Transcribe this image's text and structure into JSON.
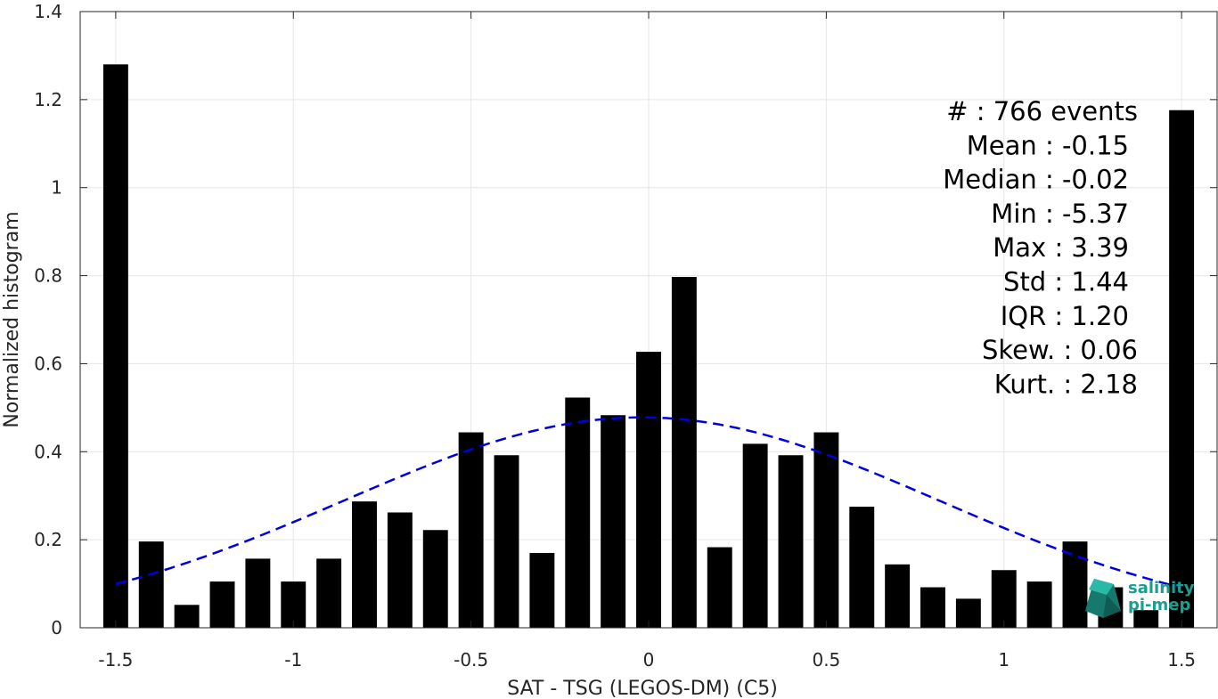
{
  "chart_data": {
    "type": "bar",
    "xlabel": "SAT - TSG (LEGOS-DM) (C5)",
    "ylabel": "Normalized histogram",
    "xlim": [
      -1.6,
      1.6
    ],
    "ylim": [
      0,
      1.4
    ],
    "grid": true,
    "bar_width": 0.07,
    "x_ticks": [
      -1.5,
      -1,
      -0.5,
      0,
      0.5,
      1,
      1.5
    ],
    "x_tick_labels": [
      "-1.5",
      "-1",
      "-0.5",
      "0",
      "0.5",
      "1",
      "1.5"
    ],
    "y_ticks": [
      0,
      0.2,
      0.4,
      0.6,
      0.8,
      1,
      1.2,
      1.4
    ],
    "y_tick_labels": [
      "0",
      "0.2",
      "0.4",
      "0.6",
      "0.8",
      "1",
      "1.2",
      "1.4"
    ],
    "x": [
      -1.5,
      -1.4,
      -1.3,
      -1.2,
      -1.1,
      -1.0,
      -0.9,
      -0.8,
      -0.7,
      -0.6,
      -0.5,
      -0.4,
      -0.3,
      -0.2,
      -0.1,
      0.0,
      0.1,
      0.2,
      0.3,
      0.4,
      0.5,
      0.6,
      0.7,
      0.8,
      0.9,
      1.0,
      1.1,
      1.2,
      1.3,
      1.4,
      1.5
    ],
    "values": [
      1.28,
      0.196,
      0.052,
      0.105,
      0.157,
      0.105,
      0.157,
      0.287,
      0.262,
      0.222,
      0.444,
      0.392,
      0.17,
      0.523,
      0.483,
      0.627,
      0.797,
      0.183,
      0.418,
      0.392,
      0.444,
      0.275,
      0.144,
      0.092,
      0.066,
      0.131,
      0.105,
      0.196,
      0.092,
      0.04,
      1.176
    ],
    "bar_color": "#000000",
    "fit_curve": {
      "style": "dashed",
      "color": "#0000dd",
      "mean": -0.02,
      "std": 0.835,
      "peak": 0.478,
      "x_range": [
        -1.5,
        1.5
      ]
    },
    "grid_color": "#e6e6e6"
  },
  "stats": {
    "lines": [
      "#  : 766 events",
      "Mean : -0.15",
      "Median : -0.02",
      "Min : -5.37",
      "Max : 3.39",
      "Std : 1.44",
      "IQR : 1.20",
      "Skew. : 0.06",
      "Kurt. : 2.18"
    ]
  },
  "logo": {
    "line1": "salinity",
    "line2": "pi-mep",
    "color": "#1a9e8f"
  }
}
